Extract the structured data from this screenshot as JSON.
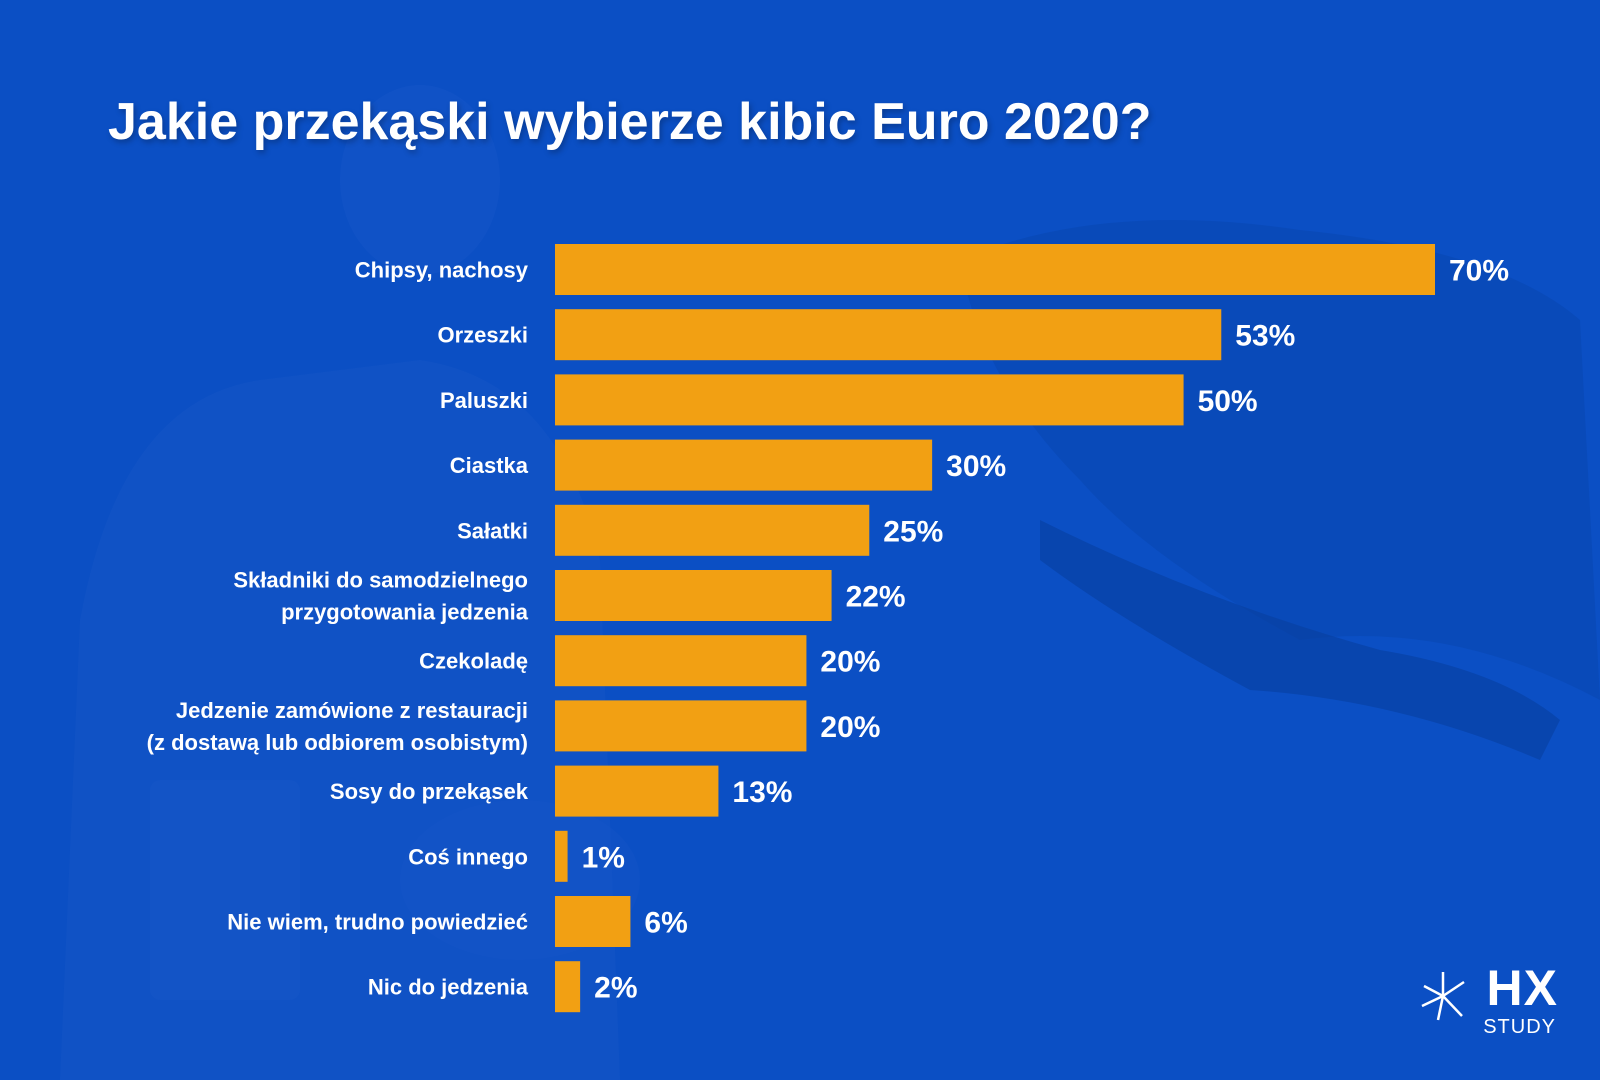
{
  "title": "Jakie przekąski wybierze kibic Euro 2020?",
  "colors": {
    "background": "#0b4fc4",
    "bar": "#f2a013",
    "text": "#ffffff"
  },
  "logo": {
    "mark": "HX",
    "sub": "STUDY"
  },
  "chart_data": {
    "type": "bar",
    "orientation": "horizontal",
    "title": "Jakie przekąski wybierze kibic Euro 2020?",
    "xlabel": "",
    "ylabel": "",
    "xlim": [
      0,
      70
    ],
    "value_suffix": "%",
    "categories": [
      [
        "Chipsy, nachosy"
      ],
      [
        "Orzeszki"
      ],
      [
        "Paluszki"
      ],
      [
        "Ciastka"
      ],
      [
        "Sałatki"
      ],
      [
        "Składniki do samodzielnego",
        "przygotowania jedzenia"
      ],
      [
        "Czekoladę"
      ],
      [
        "Jedzenie zamówione z restauracji",
        "(z dostawą lub odbiorem osobistym)"
      ],
      [
        "Sosy do przekąsek"
      ],
      [
        "Coś innego"
      ],
      [
        "Nie wiem, trudno powiedzieć"
      ],
      [
        "Nic do jedzenia"
      ]
    ],
    "values": [
      70,
      53,
      50,
      30,
      25,
      22,
      20,
      20,
      13,
      1,
      6,
      2
    ],
    "value_labels": [
      "70%",
      "53%",
      "50%",
      "30%",
      "25%",
      "22%",
      "20%",
      "20%",
      "13%",
      "1%",
      "6%",
      "2%"
    ]
  }
}
